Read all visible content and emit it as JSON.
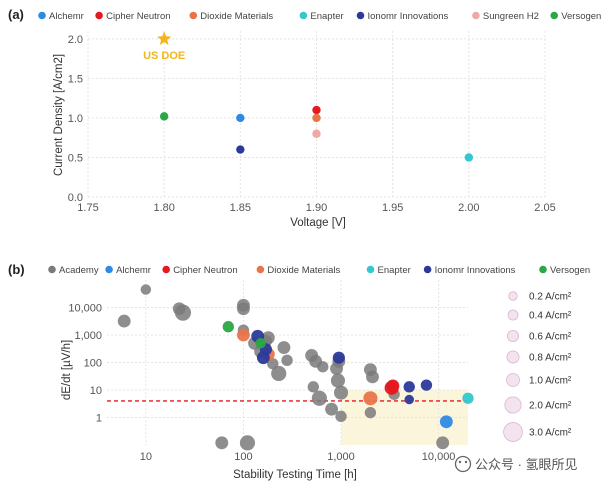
{
  "chart_data": [
    {
      "panel": "(a)",
      "type": "scatter",
      "xlabel": "Voltage [V]",
      "ylabel": "Current Density [A/cm2]",
      "xlim": [
        1.75,
        2.05
      ],
      "ylim": [
        0.0,
        2.1
      ],
      "xticks": [
        1.75,
        1.8,
        1.85,
        1.9,
        1.95,
        2.0,
        2.05
      ],
      "xtick_labels": [
        "1.75",
        "1.80",
        "1.85",
        "1.90",
        "1.95",
        "2.00",
        "2.05"
      ],
      "yticks": [
        0.0,
        0.5,
        1.0,
        1.5,
        2.0
      ],
      "ytick_labels": [
        "0.0",
        "0.5",
        "1.0",
        "1.5",
        "2.0"
      ],
      "grid": true,
      "legend_position": "top",
      "series": [
        {
          "name": "Alchemr",
          "color": "#2f8ae6",
          "points": [
            {
              "x": 1.85,
              "y": 1.0
            }
          ]
        },
        {
          "name": "Cipher Neutron",
          "color": "#e5191f",
          "points": [
            {
              "x": 1.9,
              "y": 1.1
            }
          ]
        },
        {
          "name": "Dioxide Materials",
          "color": "#e9744a",
          "points": [
            {
              "x": 1.9,
              "y": 1.0
            }
          ]
        },
        {
          "name": "Enapter",
          "color": "#35c7cf",
          "points": [
            {
              "x": 2.0,
              "y": 0.5
            }
          ]
        },
        {
          "name": "Ionomr Innovations",
          "color": "#2b3a9a",
          "points": [
            {
              "x": 1.85,
              "y": 0.6
            }
          ]
        },
        {
          "name": "Sungreen H2",
          "color": "#f0a8a4",
          "points": [
            {
              "x": 1.9,
              "y": 0.8
            }
          ]
        },
        {
          "name": "Versogen",
          "color": "#2aa845",
          "points": [
            {
              "x": 1.8,
              "y": 1.02
            }
          ]
        }
      ],
      "annotation": {
        "text": "US DOE",
        "x": 1.8,
        "y": 2.0,
        "color": "#f2b61c",
        "marker": "star"
      }
    },
    {
      "panel": "(b)",
      "type": "scatter",
      "xlabel": "Stability Testing Time [h]",
      "ylabel": "dE/dt [µV/h]",
      "xscale": "log",
      "yscale": "log",
      "xlim": [
        4,
        20000
      ],
      "ylim": [
        0.1,
        100000
      ],
      "xticks": [
        10,
        100,
        1000,
        10000
      ],
      "xtick_labels": [
        "10",
        "100",
        "1,000",
        "10,000"
      ],
      "yticks": [
        1,
        10,
        100,
        1000,
        10000
      ],
      "ytick_labels": [
        "1",
        "10",
        "100",
        "1,000",
        "10,000"
      ],
      "grid": true,
      "legend_position": "top",
      "threshold_line": {
        "y": 4,
        "color": "#e5191f",
        "style": "dashed"
      },
      "target_region": {
        "x_min": 1000,
        "x_max": 20000,
        "y_min": 0.1,
        "y_max": 10,
        "color": "#fbf5dc"
      },
      "size_legend": [
        {
          "label": "0.2 A/cm²",
          "value": 0.2
        },
        {
          "label": "0.4 A/cm²",
          "value": 0.4
        },
        {
          "label": "0.6 A/cm²",
          "value": 0.6
        },
        {
          "label": "0.8 A/cm²",
          "value": 0.8
        },
        {
          "label": "1.0 A/cm²",
          "value": 1.0
        },
        {
          "label": "2.0 A/cm²",
          "value": 2.0
        },
        {
          "label": "3.0 A/cm²",
          "value": 3.0
        }
      ],
      "series": [
        {
          "name": "Academy",
          "color": "#7a7a7a",
          "points": [
            {
              "x": 6,
              "y": 3200,
              "current": 0.6
            },
            {
              "x": 10,
              "y": 45000,
              "current": 0.3
            },
            {
              "x": 22,
              "y": 9000,
              "current": 0.6
            },
            {
              "x": 24,
              "y": 6500,
              "current": 1.2
            },
            {
              "x": 60,
              "y": 0.12,
              "current": 0.6
            },
            {
              "x": 100,
              "y": 12000,
              "current": 0.6
            },
            {
              "x": 100,
              "y": 9000,
              "current": 0.6
            },
            {
              "x": 100,
              "y": 1500,
              "current": 0.4
            },
            {
              "x": 110,
              "y": 0.12,
              "current": 1.0
            },
            {
              "x": 130,
              "y": 500,
              "current": 0.6
            },
            {
              "x": 150,
              "y": 250,
              "current": 0.6
            },
            {
              "x": 170,
              "y": 600,
              "current": 0.5
            },
            {
              "x": 180,
              "y": 800,
              "current": 0.6
            },
            {
              "x": 200,
              "y": 90,
              "current": 0.4
            },
            {
              "x": 230,
              "y": 40,
              "current": 1.0
            },
            {
              "x": 260,
              "y": 350,
              "current": 0.6
            },
            {
              "x": 280,
              "y": 120,
              "current": 0.4
            },
            {
              "x": 500,
              "y": 180,
              "current": 0.6
            },
            {
              "x": 520,
              "y": 13,
              "current": 0.4
            },
            {
              "x": 550,
              "y": 110,
              "current": 0.6
            },
            {
              "x": 600,
              "y": 5,
              "current": 1.0
            },
            {
              "x": 650,
              "y": 70,
              "current": 0.4
            },
            {
              "x": 800,
              "y": 2,
              "current": 0.6
            },
            {
              "x": 900,
              "y": 60,
              "current": 0.6
            },
            {
              "x": 930,
              "y": 22,
              "current": 0.8
            },
            {
              "x": 950,
              "y": 110,
              "current": 0.6
            },
            {
              "x": 1000,
              "y": 8,
              "current": 0.8
            },
            {
              "x": 1000,
              "y": 1.1,
              "current": 0.4
            },
            {
              "x": 2000,
              "y": 55,
              "current": 0.6
            },
            {
              "x": 2000,
              "y": 1.5,
              "current": 0.4
            },
            {
              "x": 2100,
              "y": 30,
              "current": 0.6
            },
            {
              "x": 3500,
              "y": 7,
              "current": 0.4
            },
            {
              "x": 11000,
              "y": 0.12,
              "current": 0.6
            }
          ]
        },
        {
          "name": "Alchemr",
          "color": "#2f8ae6",
          "points": [
            {
              "x": 12000,
              "y": 0.7,
              "current": 0.6
            }
          ]
        },
        {
          "name": "Cipher Neutron",
          "color": "#e5191f",
          "points": [
            {
              "x": 3300,
              "y": 12,
              "current": 0.8
            },
            {
              "x": 3400,
              "y": 14,
              "current": 0.6
            }
          ]
        },
        {
          "name": "Dioxide Materials",
          "color": "#e9744a",
          "points": [
            {
              "x": 100,
              "y": 1000,
              "current": 0.6
            },
            {
              "x": 180,
              "y": 200,
              "current": 0.6
            },
            {
              "x": 2000,
              "y": 5,
              "current": 0.8
            }
          ]
        },
        {
          "name": "Enapter",
          "color": "#35c7cf",
          "points": [
            {
              "x": 20000,
              "y": 5,
              "current": 0.4
            }
          ]
        },
        {
          "name": "Ionomr Innovations",
          "color": "#2b3a9a",
          "points": [
            {
              "x": 140,
              "y": 900,
              "current": 0.6
            },
            {
              "x": 160,
              "y": 150,
              "current": 0.6
            },
            {
              "x": 170,
              "y": 300,
              "current": 0.5
            },
            {
              "x": 950,
              "y": 150,
              "current": 0.5
            },
            {
              "x": 5000,
              "y": 13,
              "current": 0.4
            },
            {
              "x": 5000,
              "y": 4.5,
              "current": 0.2
            },
            {
              "x": 7500,
              "y": 15,
              "current": 0.4
            }
          ]
        },
        {
          "name": "Versogen",
          "color": "#2aa845",
          "points": [
            {
              "x": 70,
              "y": 2000,
              "current": 0.4
            },
            {
              "x": 150,
              "y": 500,
              "current": 0.3
            }
          ]
        }
      ]
    }
  ],
  "watermark": {
    "text": "公众号 · 氢眼所见",
    "icon": "wechat-icon"
  }
}
